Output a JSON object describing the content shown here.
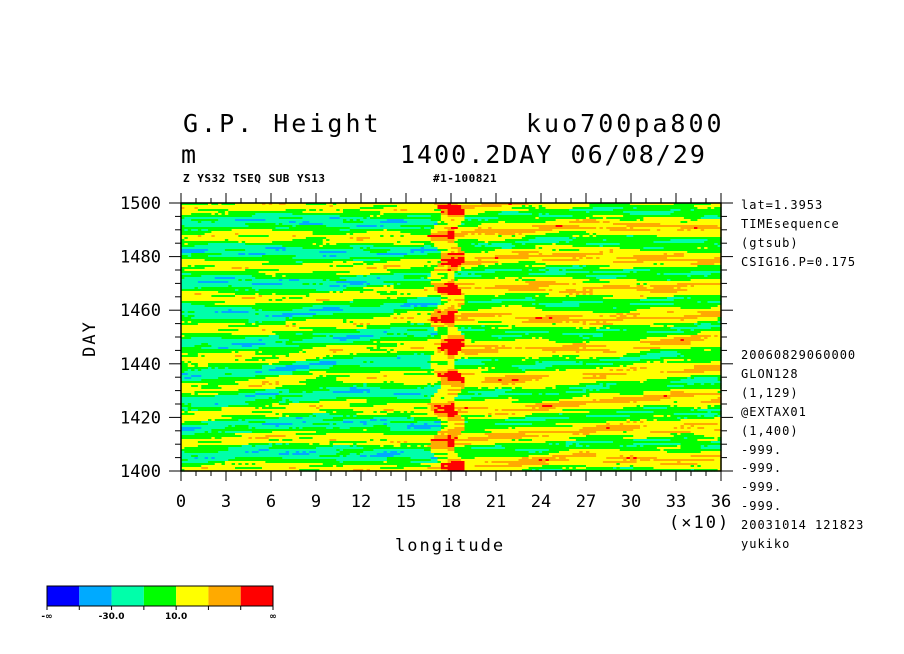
{
  "header": {
    "title_left": "G.P. Height",
    "title_right": "kuo700pa800",
    "unit": "m",
    "time_label": "1400.2DAY 06/08/29",
    "subtitle": "Z YS32 TSEQ SUB YS13",
    "run_id": "#1-100821"
  },
  "side_info_top": [
    "lat=1.3953",
    "TIMEsequence",
    "(gtsub)",
    "CSIG16.P=0.175"
  ],
  "side_info_bottom": [
    "20060829060000",
    "GLON128",
    "(1,129)",
    "@EXTAX01",
    "(1,400)",
    "-999.",
    "-999.",
    "-999.",
    "-999.",
    "20031014 121823",
    "yukiko"
  ],
  "chart_data": {
    "type": "heatmap",
    "xlabel": "longitude",
    "x_scale_note": "(×10)",
    "ylabel": "DAY",
    "xlim": [
      0,
      36
    ],
    "ylim": [
      1400,
      1500
    ],
    "x_ticks": [
      0,
      3,
      6,
      9,
      12,
      15,
      18,
      21,
      24,
      27,
      30,
      33,
      36
    ],
    "y_ticks": [
      1400,
      1420,
      1440,
      1460,
      1480,
      1500
    ],
    "colorbar": {
      "colors": [
        "#0000ff",
        "#00aaff",
        "#00ffaa",
        "#00ff00",
        "#ffff00",
        "#ffaa00",
        "#ff0000"
      ],
      "labels": [
        "-∞",
        "-30.0",
        "10.0",
        "∞"
      ]
    }
  }
}
